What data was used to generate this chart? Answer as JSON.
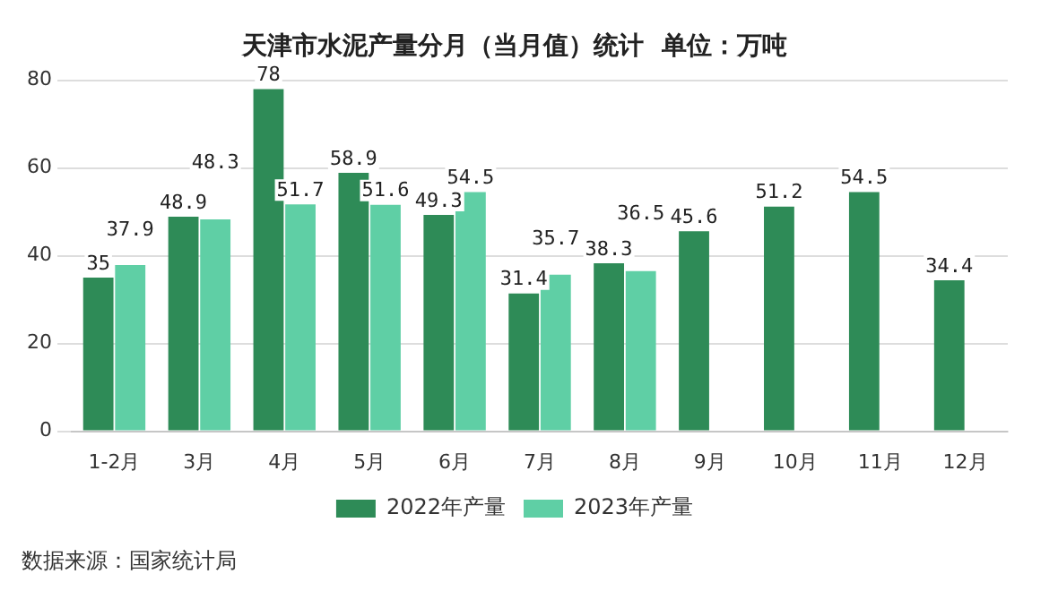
{
  "chart_data": {
    "type": "bar",
    "title": "天津市水泥产量分月（当月值）统计  单位：万吨",
    "categories": [
      "1-2月",
      "3月",
      "4月",
      "5月",
      "6月",
      "7月",
      "8月",
      "9月",
      "10月",
      "11月",
      "12月"
    ],
    "series": [
      {
        "name": "2022年产量",
        "color": "#2e8b57",
        "values": [
          35,
          48.9,
          78,
          58.9,
          49.3,
          31.4,
          38.3,
          45.6,
          51.2,
          54.5,
          34.4
        ]
      },
      {
        "name": "2023年产量",
        "color": "#5fcfa5",
        "values": [
          37.9,
          48.3,
          51.7,
          51.6,
          54.5,
          35.7,
          36.5,
          null,
          null,
          null,
          null
        ]
      }
    ],
    "ylim": [
      0,
      80
    ],
    "yticks": [
      0,
      20,
      40,
      60,
      80
    ],
    "grid": "y",
    "legend": "bottom",
    "data_labels": true,
    "annotations": [
      "数据来源：国家统计局"
    ]
  }
}
